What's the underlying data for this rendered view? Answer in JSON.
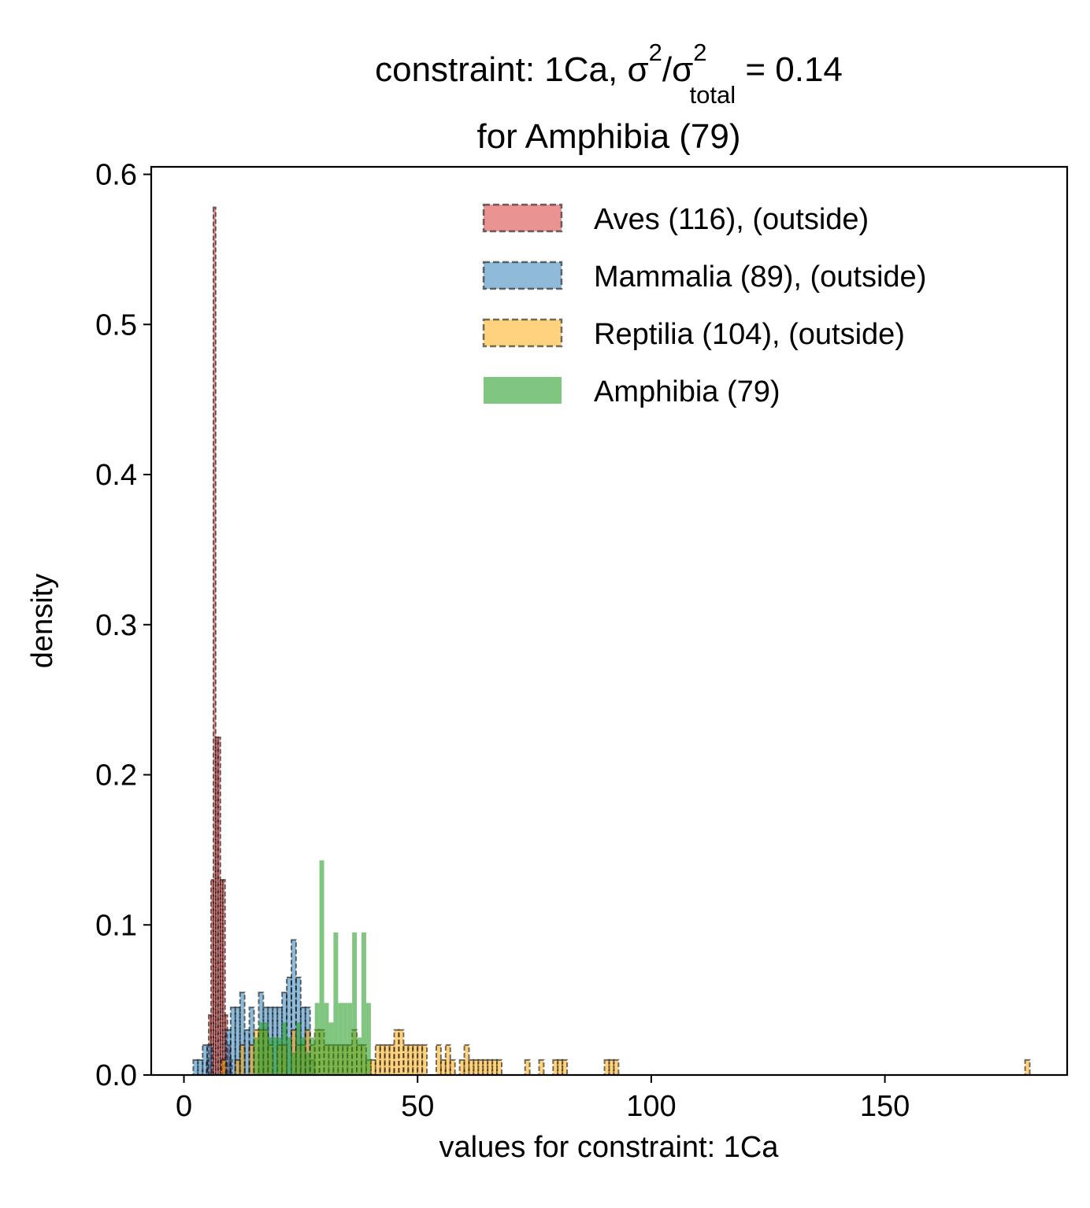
{
  "chart_data": {
    "type": "bar",
    "title": {
      "prefix": "constraint: 1Ca, σ",
      "sup1": "2",
      "mid": "/σ",
      "sup2": "2",
      "sub": "total",
      "suffix": " =  0.14",
      "line2": "for Amphibia (79)"
    },
    "xlabel": "values for constraint: 1Ca",
    "ylabel": "density",
    "xlim": [
      -7,
      189
    ],
    "ylim": [
      0,
      0.605
    ],
    "xticks": [
      0,
      50,
      100,
      150
    ],
    "yticks": [
      0.0,
      0.1,
      0.2,
      0.3,
      0.4,
      0.5,
      0.6
    ],
    "grid": false,
    "legend_position": "top-right",
    "series": [
      {
        "name": "Aves (116), (outside)",
        "color": "#d62728",
        "style": "dashed",
        "bins": [
          [
            4.8,
            5.3,
            0.01
          ],
          [
            5.3,
            5.8,
            0.04
          ],
          [
            5.8,
            6.3,
            0.13
          ],
          [
            6.3,
            6.8,
            0.578
          ],
          [
            6.8,
            7.3,
            0.225
          ],
          [
            7.3,
            7.8,
            0.225
          ],
          [
            7.8,
            8.3,
            0.13
          ],
          [
            8.3,
            8.8,
            0.13
          ],
          [
            8.8,
            9.3,
            0.04
          ],
          [
            9.3,
            9.8,
            0.02
          ],
          [
            9.8,
            10.3,
            0.01
          ]
        ]
      },
      {
        "name": "Mammalia (89), (outside)",
        "color": "#1f77b4",
        "style": "dashed",
        "bins": [
          [
            2,
            3,
            0.01
          ],
          [
            3,
            4,
            0.01
          ],
          [
            4,
            5,
            0.02
          ],
          [
            5,
            6,
            0.02
          ],
          [
            9,
            10,
            0.03
          ],
          [
            10,
            11,
            0.045
          ],
          [
            11,
            12,
            0.045
          ],
          [
            12,
            13,
            0.055
          ],
          [
            13,
            14,
            0.03
          ],
          [
            14,
            15,
            0.045
          ],
          [
            16,
            17,
            0.055
          ],
          [
            17,
            18,
            0.045
          ],
          [
            18,
            19,
            0.045
          ],
          [
            19,
            20,
            0.045
          ],
          [
            20,
            21,
            0.045
          ],
          [
            21,
            22,
            0.055
          ],
          [
            22,
            23,
            0.065
          ],
          [
            23,
            24,
            0.09
          ],
          [
            24,
            25,
            0.065
          ],
          [
            25,
            26,
            0.045
          ],
          [
            26,
            27,
            0.045
          ],
          [
            27,
            28,
            0.01
          ]
        ]
      },
      {
        "name": "Reptilia (104), (outside)",
        "color": "#ffa500",
        "style": "dashed",
        "bins": [
          [
            8,
            9,
            0.01
          ],
          [
            11,
            12,
            0.01
          ],
          [
            12,
            13,
            0.02
          ],
          [
            14,
            15,
            0.02
          ],
          [
            15,
            16,
            0.03
          ],
          [
            16,
            17,
            0.03
          ],
          [
            17,
            18,
            0.03
          ],
          [
            18,
            19,
            0.02
          ],
          [
            20,
            21,
            0.02
          ],
          [
            21,
            22,
            0.02
          ],
          [
            23,
            24,
            0.03
          ],
          [
            24,
            25,
            0.02
          ],
          [
            25,
            26,
            0.02
          ],
          [
            26,
            27,
            0.03
          ],
          [
            27,
            28,
            0.02
          ],
          [
            28,
            29,
            0.03
          ],
          [
            29,
            30,
            0.03
          ],
          [
            30,
            31,
            0.02
          ],
          [
            31,
            32,
            0.02
          ],
          [
            32,
            33,
            0.02
          ],
          [
            33,
            34,
            0.02
          ],
          [
            34,
            35,
            0.02
          ],
          [
            35,
            36,
            0.02
          ],
          [
            36,
            37,
            0.03
          ],
          [
            37,
            38,
            0.02
          ],
          [
            38,
            39,
            0.02
          ],
          [
            39,
            40,
            0.01
          ],
          [
            40,
            41,
            0.01
          ],
          [
            41,
            42,
            0.02
          ],
          [
            42,
            43,
            0.02
          ],
          [
            43,
            44,
            0.02
          ],
          [
            44,
            45,
            0.02
          ],
          [
            45,
            46,
            0.03
          ],
          [
            46,
            47,
            0.03
          ],
          [
            47,
            48,
            0.02
          ],
          [
            48,
            49,
            0.02
          ],
          [
            49,
            50,
            0.02
          ],
          [
            50,
            51,
            0.02
          ],
          [
            51,
            52,
            0.02
          ],
          [
            54,
            55,
            0.02
          ],
          [
            55,
            56,
            0.01
          ],
          [
            56,
            57,
            0.02
          ],
          [
            57,
            58,
            0.01
          ],
          [
            59,
            60,
            0.01
          ],
          [
            60,
            61,
            0.02
          ],
          [
            61,
            62,
            0.01
          ],
          [
            62,
            63,
            0.01
          ],
          [
            63,
            64,
            0.01
          ],
          [
            64,
            65,
            0.01
          ],
          [
            65,
            66,
            0.01
          ],
          [
            66,
            67,
            0.01
          ],
          [
            67,
            68,
            0.01
          ],
          [
            73,
            74,
            0.01
          ],
          [
            76,
            77,
            0.01
          ],
          [
            79,
            80,
            0.01
          ],
          [
            80,
            81,
            0.01
          ],
          [
            81,
            82,
            0.01
          ],
          [
            90,
            91,
            0.01
          ],
          [
            91,
            92,
            0.01
          ],
          [
            92,
            93,
            0.01
          ],
          [
            180,
            181,
            0.01
          ]
        ]
      },
      {
        "name": "Amphibia (79)",
        "color": "#2ca02c",
        "style": "solid",
        "bins": [
          [
            15,
            16,
            0.025
          ],
          [
            16,
            17,
            0.035
          ],
          [
            17,
            18,
            0.035
          ],
          [
            18,
            19,
            0.025
          ],
          [
            19,
            20,
            0.025
          ],
          [
            20,
            21,
            0.025
          ],
          [
            21,
            22,
            0.035
          ],
          [
            22,
            23,
            0.025
          ],
          [
            23,
            24,
            0.015
          ],
          [
            24,
            25,
            0.035
          ],
          [
            25,
            26,
            0.025
          ],
          [
            26,
            27,
            0.015
          ],
          [
            27,
            28,
            0.025
          ],
          [
            28,
            29,
            0.048
          ],
          [
            29,
            30,
            0.143
          ],
          [
            30,
            31,
            0.048
          ],
          [
            31,
            32,
            0.035
          ],
          [
            32,
            33,
            0.095
          ],
          [
            33,
            34,
            0.048
          ],
          [
            34,
            35,
            0.048
          ],
          [
            35,
            36,
            0.048
          ],
          [
            36,
            37,
            0.095
          ],
          [
            37,
            38,
            0.025
          ],
          [
            38,
            39,
            0.095
          ],
          [
            39,
            40,
            0.048
          ]
        ]
      }
    ]
  }
}
